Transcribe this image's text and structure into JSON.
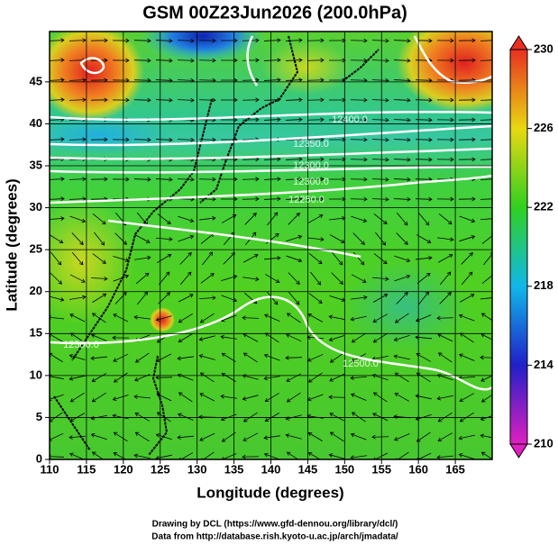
{
  "chart_data": {
    "type": "map",
    "title": "GSM 00Z23Jun2026 (200.0hPa)",
    "x_label": "Longitude (degrees)",
    "y_label": "Latitude  (degrees)",
    "xlim": [
      110,
      170
    ],
    "ylim": [
      0,
      51
    ],
    "xticks": [
      110,
      115,
      120,
      125,
      130,
      135,
      140,
      145,
      150,
      155,
      160,
      165
    ],
    "yticks": [
      0,
      5,
      10,
      15,
      20,
      25,
      30,
      35,
      40,
      45
    ],
    "grid": true,
    "colorbar": {
      "lim": [
        210,
        230
      ],
      "ticks": [
        210,
        214,
        218,
        222,
        226,
        230
      ]
    },
    "contour_labels": [
      "12400.0",
      "12350.0",
      "12300.0",
      "12250.0",
      "12300.0",
      "12500.0",
      "12500.0"
    ],
    "credits": [
      "Drawing by DCL (https://www.gfd-dennou.org/library/dcl/)",
      "Data from http://database.rish.kyoto-u.ac.jp/arch/jmadata/"
    ]
  }
}
